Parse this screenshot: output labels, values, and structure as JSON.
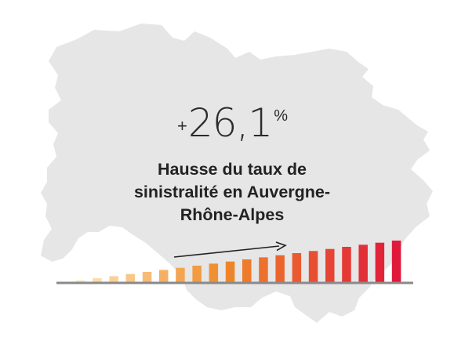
{
  "headline": {
    "sign": "+",
    "value": "26,1",
    "unit": "%"
  },
  "caption": {
    "line1": "Hausse du taux de",
    "line2": "sinistralité en Auvergne-",
    "line3": "Rhône-Alpes"
  },
  "colors": {
    "map_fill": "#e6e6e6",
    "baseline": "#8a8a8a",
    "arrow": "#222222",
    "gradient_start": "#fde6b8",
    "gradient_mid": "#f08a2a",
    "gradient_end": "#e0193a"
  },
  "icons": {
    "region": "auvergne-rhone-alpes-map",
    "trend": "arrow-right-icon"
  },
  "trend_bars": {
    "count": 20,
    "first_level": 0.04,
    "last_level": 0.93
  }
}
